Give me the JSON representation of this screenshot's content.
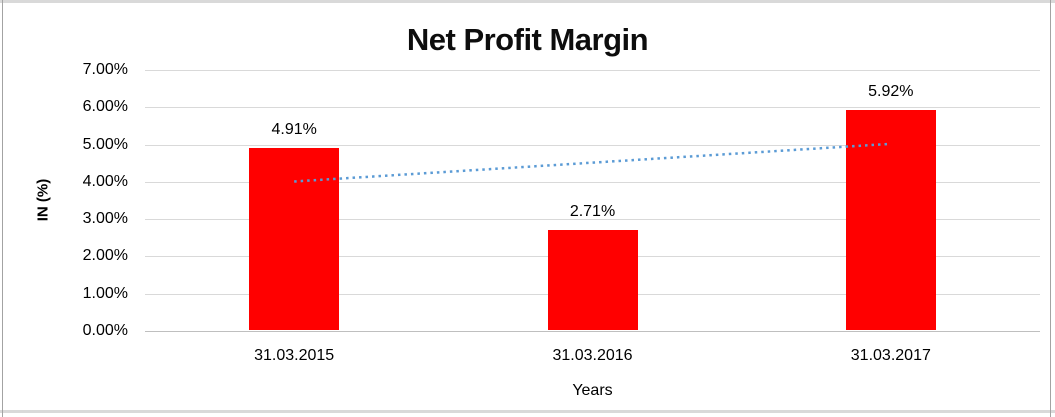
{
  "chart_data": {
    "type": "bar",
    "title": "Net Profit Margin",
    "categories": [
      "31.03.2015",
      "31.03.2016",
      "31.03.2017"
    ],
    "values": [
      4.91,
      2.71,
      5.92
    ],
    "value_labels": [
      "4.91%",
      "2.71%",
      "5.92%"
    ],
    "xlabel": "Years",
    "ylabel": "IN (%)",
    "ylim": [
      0,
      7
    ],
    "yticks": [
      "0.00%",
      "1.00%",
      "2.00%",
      "3.00%",
      "4.00%",
      "5.00%",
      "6.00%",
      "7.00%"
    ],
    "grid": true,
    "legend": false,
    "bar_color": "#FF0000",
    "gridline_color": "#d9d9d9",
    "axisline_color": "#bfbfbf",
    "trendline": {
      "type": "linear",
      "style": "dotted",
      "color": "#5B9BD5",
      "start_value": 4.01,
      "end_value": 5.02
    }
  }
}
